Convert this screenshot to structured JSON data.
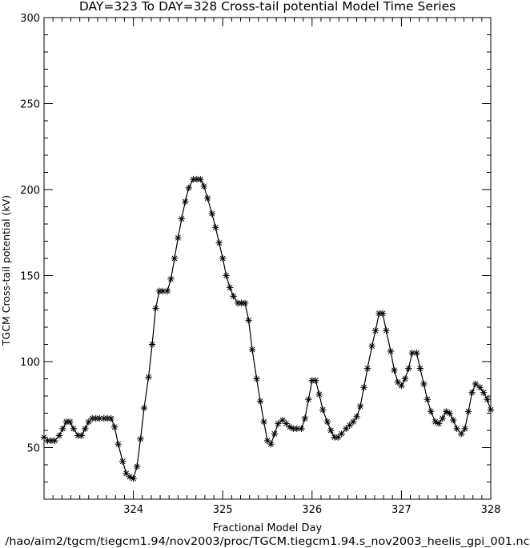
{
  "chart_data": {
    "type": "line",
    "title": "DAY=323 To DAY=328 Cross-tail potential Model Time Series",
    "xlabel": "Fractional Model Day",
    "ylabel": "TGCM Cross-tail potential (kV)",
    "footer": "/hao/aim2/tgcm/tiegcm1.94/nov2003/proc/TGCM.tiegcm1.94.s_nov2003_heelis_gpi_001.nc",
    "xlim": [
      323.0,
      328.0
    ],
    "ylim": [
      20,
      300
    ],
    "x_ticks": [
      324,
      325,
      326,
      327,
      328
    ],
    "x_tick_labels": [
      "324",
      "325",
      "326",
      "327",
      "328"
    ],
    "y_ticks": [
      50,
      100,
      150,
      200,
      250,
      300
    ],
    "y_tick_labels": [
      "50",
      "100",
      "150",
      "200",
      "250",
      "300"
    ],
    "marker": "asterisk",
    "series": [
      {
        "x": [
          323.0,
          323.04,
          323.08,
          323.12,
          323.17,
          323.21,
          323.25,
          323.29,
          323.33,
          323.38,
          323.42,
          323.46,
          323.5,
          323.54,
          323.58,
          323.62,
          323.67,
          323.71,
          323.75,
          323.79,
          323.83,
          323.88,
          323.92,
          323.96,
          324.0,
          324.04,
          324.08,
          324.12,
          324.17,
          324.21,
          324.25,
          324.29,
          324.33,
          324.38,
          324.42,
          324.46,
          324.5,
          324.54,
          324.58,
          324.62,
          324.67,
          324.71,
          324.75,
          324.79,
          324.83,
          324.88,
          324.92,
          324.96,
          325.0,
          325.04,
          325.08,
          325.12,
          325.17,
          325.21,
          325.25,
          325.29,
          325.33,
          325.38,
          325.42,
          325.46,
          325.5,
          325.54,
          325.58,
          325.62,
          325.67,
          325.71,
          325.75,
          325.79,
          325.83,
          325.88,
          325.92,
          325.96,
          326.0,
          326.04,
          326.08,
          326.12,
          326.17,
          326.21,
          326.25,
          326.29,
          326.33,
          326.38,
          326.42,
          326.46,
          326.5,
          326.54,
          326.58,
          326.62,
          326.67,
          326.71,
          326.75,
          326.79,
          326.83,
          326.88,
          326.92,
          326.96,
          327.0,
          327.04,
          327.08,
          327.12,
          327.17,
          327.21,
          327.25,
          327.29,
          327.33,
          327.38,
          327.42,
          327.46,
          327.5,
          327.54,
          327.58,
          327.62,
          327.67,
          327.71,
          327.75,
          327.79,
          327.83,
          327.88,
          327.92,
          327.96,
          328.0
        ],
        "values": [
          56,
          54,
          54,
          54,
          57,
          61,
          65,
          65,
          61,
          57,
          57,
          61,
          65,
          67,
          67,
          67,
          67,
          67,
          67,
          62,
          52,
          42,
          35,
          33,
          32,
          39,
          55,
          73,
          91,
          110,
          131,
          141,
          141,
          141,
          148,
          160,
          172,
          183,
          193,
          201,
          206,
          206,
          206,
          202,
          195,
          186,
          178,
          169,
          160,
          150,
          143,
          138,
          134,
          134,
          134,
          124,
          107,
          90,
          77,
          65,
          54,
          52,
          58,
          64,
          66,
          64,
          62,
          61,
          61,
          61,
          67,
          78,
          89,
          89,
          81,
          72,
          65,
          60,
          56,
          56,
          58,
          61,
          63,
          65,
          68,
          74,
          85,
          96,
          109,
          118,
          128,
          128,
          118,
          106,
          95,
          88,
          86,
          90,
          96,
          105,
          105,
          96,
          87,
          78,
          71,
          65,
          64,
          67,
          71,
          70,
          66,
          61,
          58,
          61,
          71,
          82,
          87,
          85,
          82,
          78,
          72
        ]
      }
    ]
  }
}
